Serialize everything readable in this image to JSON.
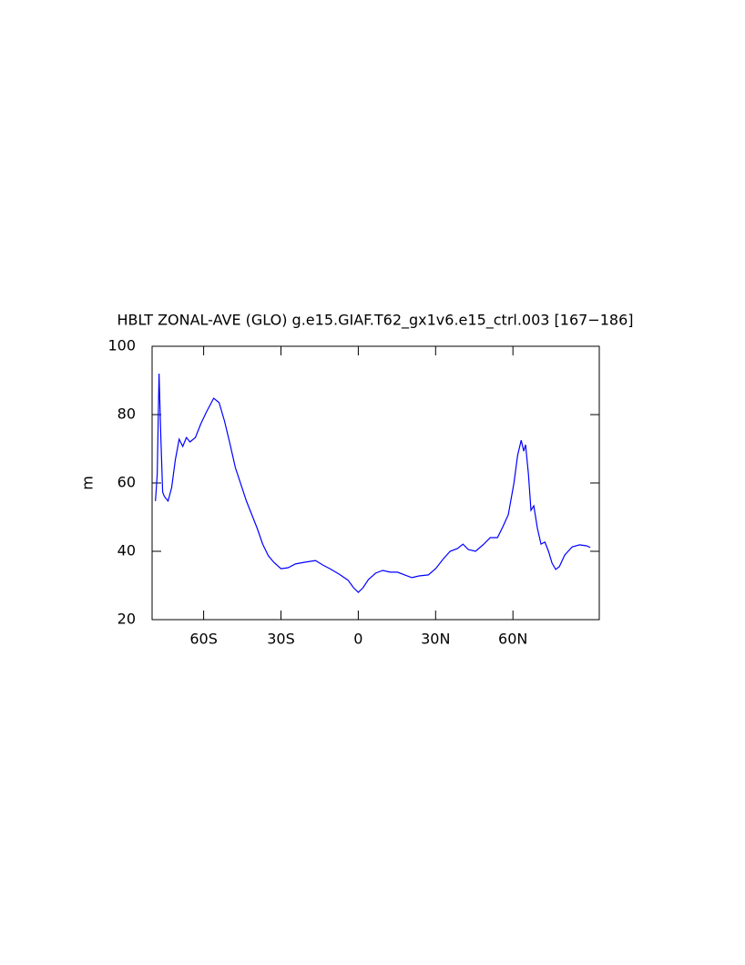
{
  "chart_data": {
    "type": "line",
    "title": "HBLT ZONAL-AVE (GLO) g.e15.GIAF.T62_gx1v6.e15_ctrl.003 [167−186]",
    "y_label": "m",
    "xlim": [
      -80,
      93.5
    ],
    "xticks": [
      {
        "value": -60,
        "label": "60S"
      },
      {
        "value": -30,
        "label": "30S"
      },
      0,
      {
        "value": 30,
        "label": "30N"
      },
      {
        "value": 60,
        "label": "60N"
      }
    ],
    "ylim": [
      20,
      100
    ],
    "yticks": [
      20,
      40,
      60,
      80,
      100
    ],
    "grid": false,
    "series": [
      {
        "name": "HBLT",
        "color": "#0000ff",
        "x": [
          -78.7,
          -78,
          -77.3,
          -76.6,
          -75.9,
          -75.2,
          -73.8,
          -72.4,
          -71,
          -69.5,
          -68.1,
          -66.7,
          -65.3,
          -63.2,
          -61.1,
          -58.9,
          -56.1,
          -54,
          -51.9,
          -49.8,
          -47.7,
          -45.5,
          -43.4,
          -41.3,
          -39.2,
          -37.1,
          -34.9,
          -32.8,
          -30,
          -27.2,
          -24.4,
          -20.8,
          -16.6,
          -13.8,
          -11,
          -7.4,
          -3.9,
          -1.8,
          0,
          1.8,
          3.9,
          6.7,
          9.5,
          12.4,
          15.2,
          18,
          20.8,
          23.6,
          27.2,
          30,
          32.8,
          35.6,
          38.5,
          40.6,
          42.7,
          45.5,
          48.4,
          51.2,
          54,
          56.1,
          58.2,
          60.4,
          61.8,
          63.2,
          64.2,
          64.9,
          66,
          67,
          68.1,
          69.5,
          70.9,
          72.4,
          73.8,
          75.2,
          76.6,
          78,
          80.1,
          83,
          85.8,
          88.6,
          90
        ],
        "values": [
          54.7,
          62.7,
          92,
          73.3,
          57.3,
          56,
          54.7,
          58.7,
          66.7,
          72.8,
          70.7,
          73.3,
          72,
          73.3,
          77.3,
          80.8,
          84.8,
          83.5,
          78.1,
          71.5,
          64.5,
          59.5,
          54.7,
          50.7,
          46.7,
          42.1,
          38.7,
          36.8,
          34.9,
          35.2,
          36.3,
          36.8,
          37.3,
          36,
          34.9,
          33.3,
          31.5,
          29.3,
          28,
          29.3,
          31.7,
          33.6,
          34.4,
          33.9,
          33.9,
          33.1,
          32.3,
          32.8,
          33.1,
          34.9,
          37.6,
          40,
          40.8,
          42.1,
          40.5,
          40,
          41.9,
          44,
          44,
          47.2,
          50.7,
          60,
          68,
          72.5,
          69.3,
          71.2,
          62.7,
          52,
          53.3,
          46.7,
          42.1,
          42.7,
          40,
          36.5,
          34.7,
          35.5,
          38.9,
          41.3,
          41.9,
          41.6,
          41.1
        ]
      }
    ]
  }
}
